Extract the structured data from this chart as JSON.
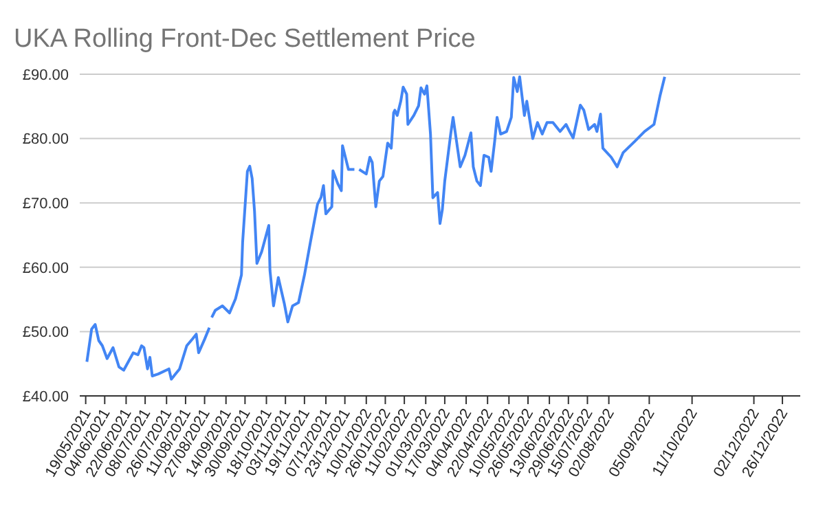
{
  "chart_data": {
    "type": "line",
    "title": "UKA Rolling Front-Dec Settlement Price",
    "color": "#4285f4",
    "grid": "y",
    "marker": "none",
    "line_style": "solid",
    "x": [
      "2021-05-20",
      "2021-05-24",
      "2021-05-27",
      "2021-05-30",
      "2021-06-02",
      "2021-06-06",
      "2021-06-11",
      "2021-06-16",
      "2021-06-20",
      "2021-06-28",
      "2021-07-02",
      "2021-07-05",
      "2021-07-07",
      "2021-07-10",
      "2021-07-12",
      "2021-07-14",
      "2021-07-19",
      "2021-07-28",
      "2021-07-30",
      "2021-08-06",
      "2021-08-12",
      "2021-08-17",
      "2021-08-20",
      "2021-08-22",
      "2021-08-27",
      "2021-08-31",
      "2021-09-01",
      "2021-09-02",
      "2021-09-05",
      "2021-09-11",
      "2021-09-17",
      "2021-09-22",
      "2021-09-27",
      "2021-09-28",
      "2021-10-02",
      "2021-10-04",
      "2021-10-06",
      "2021-10-08",
      "2021-10-10",
      "2021-10-14",
      "2021-10-20",
      "2021-10-21",
      "2021-10-24",
      "2021-10-28",
      "2021-11-02",
      "2021-11-05",
      "2021-11-09",
      "2021-11-14",
      "2021-11-19",
      "2021-11-24",
      "2021-11-30",
      "2021-12-03",
      "2021-12-05",
      "2021-12-07",
      "2021-12-12",
      "2021-12-13",
      "2021-12-17",
      "2021-12-20",
      "2021-12-21",
      "2021-12-26",
      "2021-12-31",
      "2022-01-02",
      "2022-01-04",
      "2022-01-10",
      "2022-01-13",
      "2022-01-15",
      "2022-01-18",
      "2022-01-21",
      "2022-01-24",
      "2022-01-28",
      "2022-01-31",
      "2022-02-02",
      "2022-02-03",
      "2022-02-05",
      "2022-02-08",
      "2022-02-10",
      "2022-02-13",
      "2022-02-14",
      "2022-02-19",
      "2022-02-23",
      "2022-02-25",
      "2022-02-28",
      "2022-03-02",
      "2022-03-05",
      "2022-03-07",
      "2022-03-11",
      "2022-03-13",
      "2022-03-15",
      "2022-03-17",
      "2022-03-22",
      "2022-03-24",
      "2022-03-30",
      "2022-04-03",
      "2022-04-08",
      "2022-04-10",
      "2022-04-13",
      "2022-04-16",
      "2022-04-19",
      "2022-04-23",
      "2022-04-25",
      "2022-04-28",
      "2022-04-30",
      "2022-05-03",
      "2022-05-08",
      "2022-05-12",
      "2022-05-14",
      "2022-05-17",
      "2022-05-19",
      "2022-05-23",
      "2022-05-25",
      "2022-05-30",
      "2022-06-03",
      "2022-06-07",
      "2022-06-11",
      "2022-06-16",
      "2022-06-22",
      "2022-06-27",
      "2022-06-30",
      "2022-07-03",
      "2022-07-09",
      "2022-07-12",
      "2022-07-16",
      "2022-07-21",
      "2022-07-23",
      "2022-07-26",
      "2022-07-28",
      "2022-08-04",
      "2022-08-09",
      "2022-08-14",
      "2022-08-24",
      "2022-09-01",
      "2022-09-09",
      "2022-09-14",
      "2022-09-18"
    ],
    "values": [
      45.3,
      50.4,
      51.1,
      48.6,
      47.8,
      45.8,
      47.5,
      44.5,
      44.0,
      46.7,
      46.4,
      47.8,
      47.5,
      44.2,
      46.0,
      43.1,
      43.4,
      44.2,
      42.6,
      44.2,
      47.8,
      48.9,
      49.6,
      46.7,
      48.8,
      50.6,
      null,
      52.2,
      53.3,
      54.0,
      52.9,
      55.1,
      58.8,
      63.9,
      74.9,
      75.7,
      73.8,
      68.7,
      60.6,
      62.4,
      66.5,
      59.5,
      54.0,
      58.4,
      54.4,
      51.5,
      54.0,
      54.5,
      58.8,
      63.9,
      69.8,
      70.9,
      72.7,
      68.3,
      69.4,
      75.0,
      73.0,
      71.9,
      78.9,
      75.2,
      75.2,
      null,
      75.2,
      74.5,
      77.1,
      76.3,
      69.4,
      73.4,
      74.1,
      79.3,
      78.5,
      84.0,
      84.4,
      83.6,
      85.8,
      88.0,
      86.9,
      82.2,
      83.6,
      85.1,
      87.9,
      86.9,
      88.2,
      80.7,
      70.8,
      71.6,
      66.8,
      69.0,
      73.4,
      80.7,
      83.3,
      75.6,
      77.4,
      80.9,
      75.6,
      73.4,
      72.7,
      77.4,
      77.1,
      74.9,
      79.6,
      83.3,
      80.7,
      81.1,
      83.3,
      89.5,
      87.3,
      89.6,
      83.6,
      85.8,
      80.0,
      82.5,
      80.7,
      82.5,
      82.5,
      81.1,
      82.2,
      81.1,
      80.1,
      85.2,
      84.4,
      81.4,
      82.2,
      81.1,
      83.8,
      78.5,
      77.1,
      75.6,
      77.8,
      79.6,
      81.1,
      82.2,
      86.6,
      89.6
    ],
    "xlim": [
      "2021-05-14",
      "2023-01-10"
    ],
    "xticks": [
      {
        "value": "2021-05-19",
        "label": "19/05/2021"
      },
      {
        "value": "2021-06-04",
        "label": "04/06/2021"
      },
      {
        "value": "2021-06-22",
        "label": "22/06/2021"
      },
      {
        "value": "2021-07-08",
        "label": "08/07/2021"
      },
      {
        "value": "2021-07-26",
        "label": "26/07/2021"
      },
      {
        "value": "2021-08-11",
        "label": "11/08/2021"
      },
      {
        "value": "2021-08-27",
        "label": "27/08/2021"
      },
      {
        "value": "2021-09-14",
        "label": "14/09/2021"
      },
      {
        "value": "2021-09-30",
        "label": "30/09/2021"
      },
      {
        "value": "2021-10-18",
        "label": "18/10/2021"
      },
      {
        "value": "2021-11-03",
        "label": "03/11/2021"
      },
      {
        "value": "2021-11-19",
        "label": "19/11/2021"
      },
      {
        "value": "2021-12-07",
        "label": "07/12/2021"
      },
      {
        "value": "2021-12-23",
        "label": "23/12/2021"
      },
      {
        "value": "2022-01-10",
        "label": "10/01/2022"
      },
      {
        "value": "2022-01-26",
        "label": "26/01/2022"
      },
      {
        "value": "2022-02-11",
        "label": "11/02/2022"
      },
      {
        "value": "2022-03-01",
        "label": "01/03/2022"
      },
      {
        "value": "2022-03-17",
        "label": "17/03/2022"
      },
      {
        "value": "2022-04-04",
        "label": "04/04/2022"
      },
      {
        "value": "2022-04-22",
        "label": "22/04/2022"
      },
      {
        "value": "2022-05-10",
        "label": "10/05/2022"
      },
      {
        "value": "2022-05-26",
        "label": "26/05/2022"
      },
      {
        "value": "2022-06-13",
        "label": "13/06/2022"
      },
      {
        "value": "2022-06-29",
        "label": "29/06/2022"
      },
      {
        "value": "2022-07-15",
        "label": "15/07/2022"
      },
      {
        "value": "2022-08-02",
        "label": "02/08/2022"
      },
      {
        "value": "2022-09-05",
        "label": "05/09/2022"
      },
      {
        "value": "2022-10-11",
        "label": "11/10/2022"
      },
      {
        "value": "2022-12-02",
        "label": "02/12/2022"
      },
      {
        "value": "2022-12-26",
        "label": "26/12/2022"
      }
    ],
    "ylim": [
      40,
      90
    ],
    "yticks": [
      {
        "value": 40,
        "label": "£40.00"
      },
      {
        "value": 50,
        "label": "£50.00"
      },
      {
        "value": 60,
        "label": "£60.00"
      },
      {
        "value": 70,
        "label": "£70.00"
      },
      {
        "value": 80,
        "label": "£80.00"
      },
      {
        "value": 90,
        "label": "£90.00"
      }
    ]
  }
}
